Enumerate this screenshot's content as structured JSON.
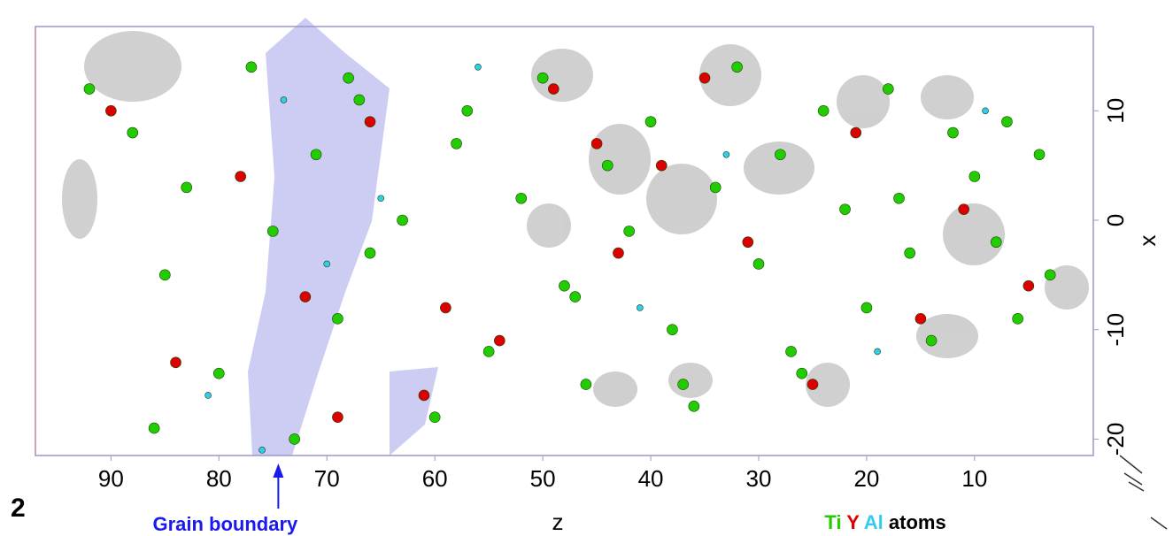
{
  "chart_data": {
    "type": "scatter",
    "panel_label": "2",
    "annotation": "Grain boundary",
    "xlabel": "z",
    "ylabel": "x",
    "legend_suffix": "atoms",
    "xlim": [
      97,
      -1
    ],
    "xticks": [
      90,
      80,
      70,
      60,
      50,
      40,
      30,
      20,
      10
    ],
    "ylim": [
      -21.5,
      17.7
    ],
    "yticks": [
      10,
      0,
      -10,
      -20
    ],
    "annotation_z": 74.5,
    "series": [
      {
        "name": "Ti",
        "color": "#22cc00",
        "x": [
          92,
          88,
          85,
          83,
          80,
          77,
          73,
          71,
          69,
          67,
          66,
          63,
          60,
          58,
          55,
          52,
          50,
          48,
          46,
          44,
          42,
          40,
          38,
          36,
          34,
          32,
          30,
          28,
          26,
          24,
          22,
          20,
          18,
          16,
          14,
          12,
          10,
          8,
          6,
          4,
          3,
          86,
          75,
          68,
          57,
          47,
          37,
          27,
          17,
          7
        ],
        "values": [
          12,
          8,
          -5,
          3,
          -14,
          14,
          -20,
          6,
          -9,
          11,
          -3,
          0,
          -18,
          7,
          -12,
          2,
          13,
          -6,
          -15,
          5,
          -1,
          9,
          -10,
          -17,
          3,
          14,
          -4,
          6,
          -14,
          10,
          1,
          -8,
          12,
          -3,
          -11,
          8,
          4,
          -2,
          -9,
          6,
          -5,
          -19,
          -1,
          13,
          10,
          -7,
          -15,
          -12,
          2,
          9
        ]
      },
      {
        "name": "Y",
        "color": "#dd0000",
        "x": [
          90,
          84,
          78,
          72,
          66,
          61,
          54,
          49,
          43,
          39,
          35,
          31,
          25,
          21,
          15,
          11,
          5,
          69,
          59,
          45
        ],
        "values": [
          10,
          -13,
          4,
          -7,
          9,
          -16,
          -11,
          12,
          -3,
          5,
          13,
          -2,
          -15,
          8,
          -9,
          1,
          -6,
          -18,
          -8,
          7
        ]
      },
      {
        "name": "Al",
        "color": "#33ccee",
        "x": [
          81,
          74,
          70,
          65,
          56,
          41,
          33,
          19,
          9,
          76
        ],
        "values": [
          -16,
          11,
          -4,
          2,
          14,
          -8,
          6,
          -12,
          10,
          -21
        ]
      }
    ]
  }
}
